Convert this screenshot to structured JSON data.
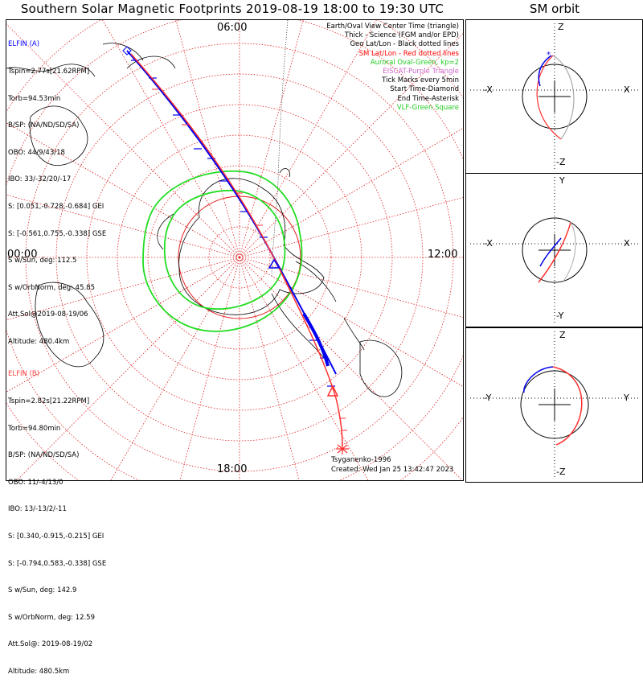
{
  "title": "Southern Solar Magnetic Footprints 2019-08-19 18:00 to 19:30 UTC",
  "orbit_title": "SM orbit",
  "clock_labels": {
    "top": "06:00",
    "left": "00:00",
    "right": "12:00",
    "bottom": "18:00"
  },
  "sat_a": {
    "name": "ELFIN (A)",
    "color": "#0000ff",
    "lines": [
      "Tspin=2.77s[21.62RPM]",
      "Torb=94.53min",
      "B/SP: (NA/ND/SD/SA)",
      "OBO: 44/9/43/18",
      "IBO: 33/-32/20/-17",
      "S: [0.051,-0.728,-0.684] GEI",
      "S: [-0.561,0.755,-0.338] GSE",
      "S w/Sun, deg: 112.5",
      "S w/OrbNorm, deg: 45.85",
      "Att.Sol@2019-08-19/06",
      "Altitude: 480.4km"
    ]
  },
  "sat_b": {
    "name": "ELFIN (B)",
    "color": "#ff4040",
    "lines": [
      "Tspin=2.82s[21.22RPM]",
      "Torb=94.80min",
      "B/SP: (NA/ND/SD/SA)",
      "OBO: 11/-4/13/0",
      "IBO: 13/-13/2/-11",
      "S: [0.340,-0.915,-0.215] GEI",
      "S: [-0.794,0.583,-0.338] GSE",
      "S w/Sun, deg: 142.9",
      "S w/OrbNorm, deg: 12.59",
      "Att.Sol@: 2019-08-19/02",
      "Altitude: 480.5km"
    ]
  },
  "legend": [
    {
      "text": "Earth/Oval View Center Time (triangle)",
      "color": "#000000"
    },
    {
      "text": "Thick - Science (FGM and/or EPD)",
      "color": "#000000"
    },
    {
      "text": "Geo Lat/Lon - Black dotted lines",
      "color": "#000000"
    },
    {
      "text": "SM Lat/Lon - Red dotted lines",
      "color": "#ff0000"
    },
    {
      "text": "Auroral Oval-Green, kp=2",
      "color": "#22cc22"
    },
    {
      "text": "EISCAT-Purple Triangle",
      "color": "#cc66cc"
    },
    {
      "text": "Tick Marks every 5min",
      "color": "#000000"
    },
    {
      "text": "Start Time-Diamond",
      "color": "#000000"
    },
    {
      "text": "End Time-Asterisk",
      "color": "#000000"
    },
    {
      "text": "VLF-Green Square",
      "color": "#22cc22"
    }
  ],
  "footer": {
    "credit": "Tsyganenko-1996",
    "created": "Created: Wed Jan 25 13:42:47 2023"
  },
  "orbit_panels": [
    {
      "top": "Z",
      "bottom": "-Z",
      "left": "-X",
      "right": "X"
    },
    {
      "top": "Y",
      "bottom": "-Y",
      "left": "-X",
      "right": "X"
    },
    {
      "top": "Z",
      "bottom": "-Z",
      "left": "-Y",
      "right": "Y"
    }
  ]
}
